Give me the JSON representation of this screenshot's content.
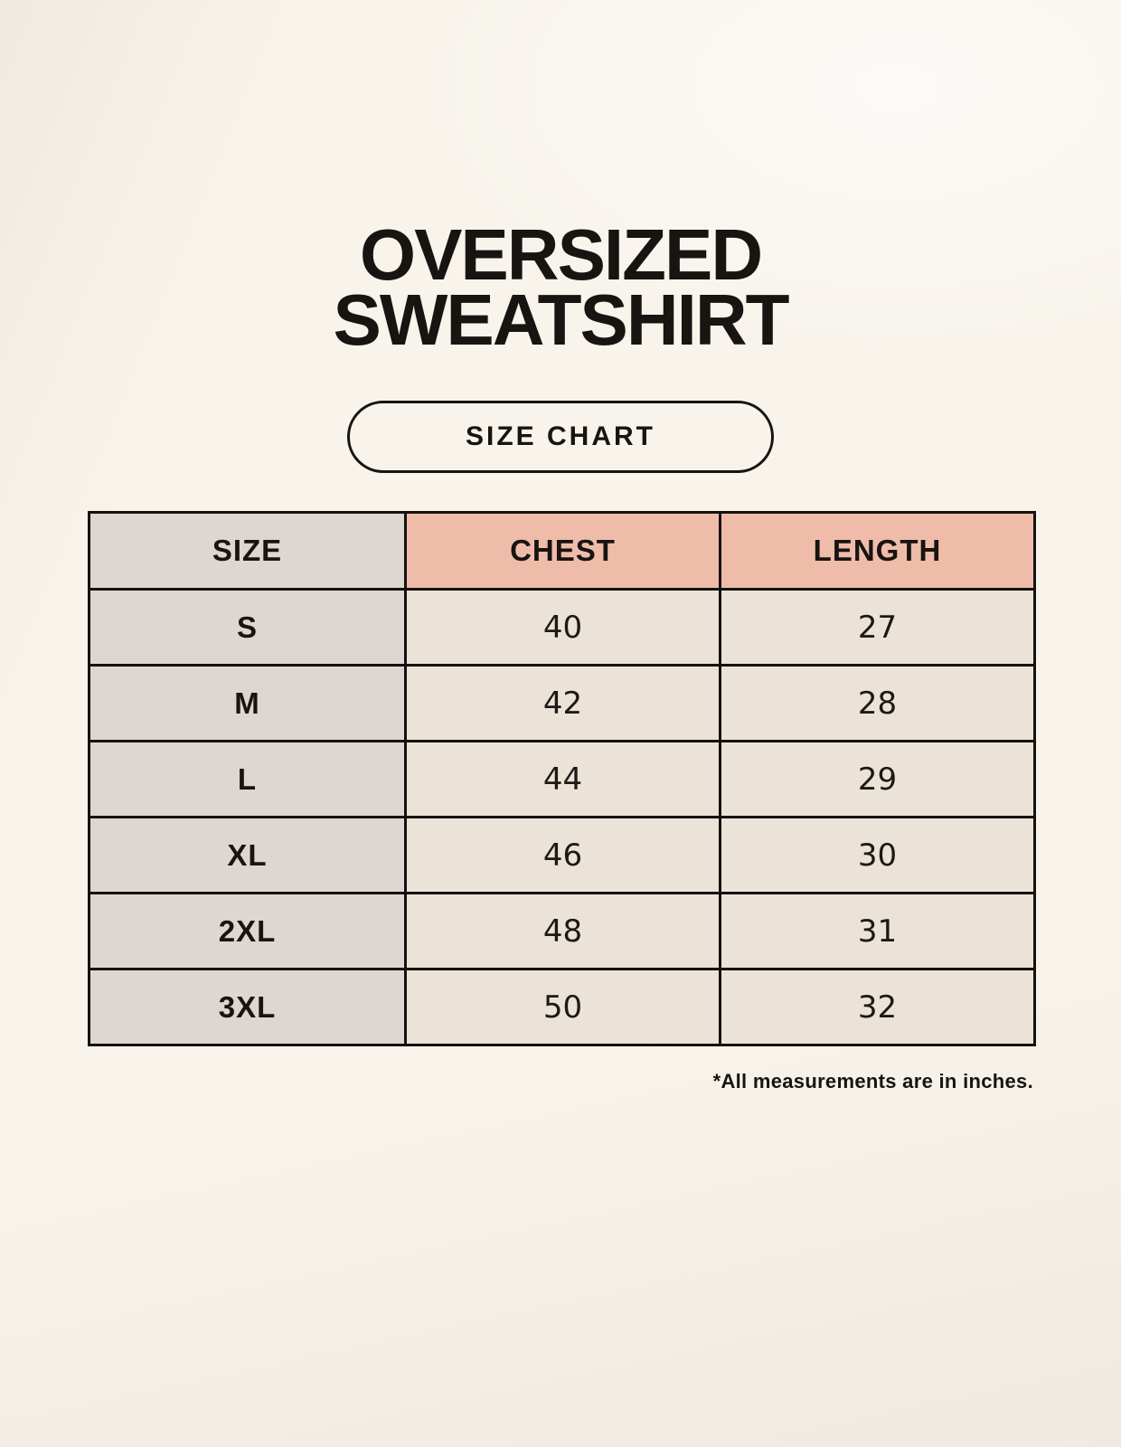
{
  "page": {
    "title_line1": "OVERSIZED",
    "title_line2": "SWEATSHIRT",
    "badge_label": "SIZE CHART",
    "footnote": "*All measurements are in inches."
  },
  "colors": {
    "page_background": "#F8F4EC",
    "header_accent_pink": "#F0BCAA",
    "size_column_gray": "#DED6D1",
    "value_cell_cream": "#EBE3D7",
    "table_border": "#141210",
    "text_dark": "#171411"
  },
  "table": {
    "columns": [
      "SIZE",
      "CHEST",
      "LENGTH"
    ],
    "rows": [
      {
        "size": "S",
        "chest": "40",
        "length": "27"
      },
      {
        "size": "M",
        "chest": "42",
        "length": "28"
      },
      {
        "size": "L",
        "chest": "44",
        "length": "29"
      },
      {
        "size": "XL",
        "chest": "46",
        "length": "30"
      },
      {
        "size": "2XL",
        "chest": "48",
        "length": "31"
      },
      {
        "size": "3XL",
        "chest": "50",
        "length": "32"
      }
    ]
  },
  "chart_data": {
    "type": "table",
    "title": "OVERSIZED SWEATSHIRT SIZE CHART",
    "columns": [
      "SIZE",
      "CHEST",
      "LENGTH"
    ],
    "rows": [
      [
        "S",
        40,
        27
      ],
      [
        "M",
        42,
        28
      ],
      [
        "L",
        44,
        29
      ],
      [
        "XL",
        46,
        30
      ],
      [
        "2XL",
        48,
        31
      ],
      [
        "3XL",
        50,
        32
      ]
    ],
    "units": "inches",
    "note": "*All measurements are in inches."
  }
}
